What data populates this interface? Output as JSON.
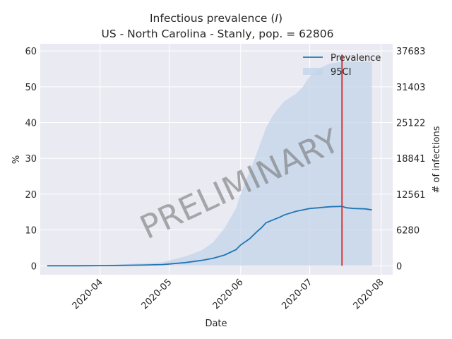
{
  "chart_data": {
    "type": "area",
    "title_line1": "Infectious prevalence (",
    "title_var": "I",
    "title_line1_end": ")",
    "title_line2": "US - North Carolina - Stanly, pop. = 62806",
    "xlabel": "Date",
    "ylabel_left": "%",
    "ylabel_right": "# of infections",
    "x_start": "2020-03-06",
    "x_end": "2020-08-06",
    "ylim": [
      -2.5,
      62
    ],
    "y_ticks_left": [
      "0",
      "10",
      "20",
      "30",
      "40",
      "50",
      "60"
    ],
    "y_ticks_right": [
      "0",
      "6280",
      "12561",
      "18841",
      "25122",
      "31403",
      "37683"
    ],
    "x_ticks": [
      "2020-04",
      "2020-05",
      "2020-06",
      "2020-07",
      "2020-08"
    ],
    "x_tick_dates": [
      "2020-04-01",
      "2020-05-01",
      "2020-06-01",
      "2020-07-01",
      "2020-08-01"
    ],
    "grid": true,
    "legend_position": "top-right",
    "legend": {
      "prevalence": "Prevalence",
      "ci": "95CI"
    },
    "watermark": "PRELIMINARY",
    "vline_date": "2020-07-15",
    "colors": {
      "line": "#1f77b4",
      "band": "#c3d4ea",
      "vline": "#d62728",
      "plot_bg": "#eaeaf2",
      "grid": "#ffffff"
    },
    "series": [
      {
        "name": "Prevalence",
        "x": [
          "2020-03-09",
          "2020-03-20",
          "2020-04-01",
          "2020-04-10",
          "2020-04-20",
          "2020-04-28",
          "2020-05-01",
          "2020-05-08",
          "2020-05-15",
          "2020-05-20",
          "2020-05-25",
          "2020-05-30",
          "2020-06-01",
          "2020-06-05",
          "2020-06-08",
          "2020-06-10",
          "2020-06-12",
          "2020-06-15",
          "2020-06-18",
          "2020-06-20",
          "2020-06-25",
          "2020-06-28",
          "2020-07-01",
          "2020-07-05",
          "2020-07-08",
          "2020-07-10",
          "2020-07-15",
          "2020-07-17",
          "2020-07-20",
          "2020-07-25",
          "2020-07-28"
        ],
        "y": [
          0.0,
          0.0,
          0.05,
          0.1,
          0.2,
          0.35,
          0.5,
          0.9,
          1.5,
          2.1,
          3.0,
          4.5,
          5.8,
          7.6,
          9.5,
          10.6,
          12.0,
          12.8,
          13.6,
          14.2,
          15.2,
          15.6,
          16.0,
          16.2,
          16.4,
          16.5,
          16.6,
          16.2,
          16.0,
          15.9,
          15.6
        ]
      },
      {
        "name": "95CI",
        "x": [
          "2020-03-09",
          "2020-03-20",
          "2020-04-01",
          "2020-04-10",
          "2020-04-20",
          "2020-04-28",
          "2020-05-01",
          "2020-05-08",
          "2020-05-15",
          "2020-05-20",
          "2020-05-25",
          "2020-05-30",
          "2020-06-01",
          "2020-06-05",
          "2020-06-08",
          "2020-06-10",
          "2020-06-12",
          "2020-06-15",
          "2020-06-18",
          "2020-06-20",
          "2020-06-25",
          "2020-06-28",
          "2020-07-01",
          "2020-07-05",
          "2020-07-08",
          "2020-07-10",
          "2020-07-15",
          "2020-07-17",
          "2020-07-20",
          "2020-07-25",
          "2020-07-28"
        ],
        "upper": [
          0.0,
          0.05,
          0.2,
          0.4,
          0.7,
          1.0,
          1.5,
          2.6,
          4.3,
          6.5,
          10.5,
          16.0,
          20.0,
          26.5,
          31.5,
          35.0,
          38.5,
          42.0,
          44.5,
          46.0,
          48.0,
          50.0,
          53.0,
          55.0,
          56.0,
          56.5,
          57.0,
          57.0,
          57.0,
          57.0,
          57.0
        ],
        "lower": [
          0.0,
          0.0,
          0.0,
          0.0,
          0.0,
          0.0,
          0.0,
          0.0,
          0.0,
          0.0,
          0.0,
          0.0,
          0.0,
          0.0,
          0.0,
          0.0,
          0.0,
          0.0,
          0.0,
          0.0,
          0.0,
          0.0,
          0.0,
          0.0,
          0.0,
          0.0,
          0.0,
          0.0,
          0.0,
          0.0,
          0.0
        ]
      }
    ]
  }
}
